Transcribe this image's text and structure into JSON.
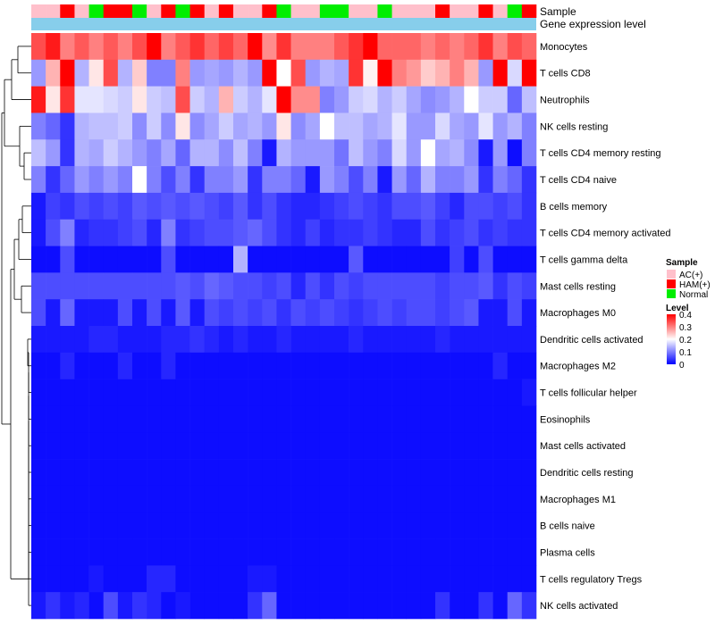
{
  "chart_data": {
    "type": "heatmap",
    "title": "",
    "annotation_tracks": [
      "Sample",
      "Gene expression level"
    ],
    "rows": [
      "Monocytes",
      "T cells CD8",
      "Neutrophils",
      "NK cells resting",
      "T cells CD4 memory resting",
      "T cells CD4 naive",
      "B cells memory",
      "T cells CD4 memory activated",
      "T cells gamma delta",
      "Mast cells resting",
      "Macrophages M0",
      "Dendritic cells activated",
      "Macrophages M2",
      "T cells follicular helper",
      "Eosinophils",
      "Mast cells activated",
      "Dendritic cells resting",
      "Macrophages M1",
      "B cells naive",
      "Plasma cells",
      "T cells regulatory  Tregs",
      "NK cells activated"
    ],
    "sample_groups": [
      "AC(+)",
      "AC(+)",
      "HAM(+)",
      "AC(+)",
      "Normal",
      "HAM(+)",
      "HAM(+)",
      "Normal",
      "AC(+)",
      "HAM(+)",
      "Normal",
      "HAM(+)",
      "AC(+)",
      "HAM(+)",
      "AC(+)",
      "AC(+)",
      "HAM(+)",
      "Normal",
      "AC(+)",
      "AC(+)",
      "Normal",
      "Normal",
      "AC(+)",
      "AC(+)",
      "Normal",
      "AC(+)",
      "AC(+)",
      "AC(+)",
      "HAM(+)",
      "AC(+)",
      "AC(+)",
      "HAM(+)",
      "AC(+)",
      "Normal",
      "HAM(+)"
    ],
    "values": [
      [
        0.34,
        0.38,
        0.3,
        0.33,
        0.3,
        0.33,
        0.3,
        0.34,
        0.4,
        0.3,
        0.33,
        0.36,
        0.32,
        0.35,
        0.32,
        0.4,
        0.29,
        0.36,
        0.3,
        0.3,
        0.3,
        0.33,
        0.36,
        0.4,
        0.32,
        0.32,
        0.32,
        0.3,
        0.32,
        0.3,
        0.32,
        0.36,
        0.3,
        0.34,
        0.32
      ],
      [
        0.12,
        0.26,
        0.4,
        0.14,
        0.22,
        0.34,
        0.14,
        0.24,
        0.1,
        0.1,
        0.3,
        0.12,
        0.13,
        0.12,
        0.14,
        0.12,
        0.4,
        0.2,
        0.34,
        0.12,
        0.14,
        0.13,
        0.36,
        0.21,
        0.4,
        0.3,
        0.28,
        0.24,
        0.26,
        0.3,
        0.26,
        0.12,
        0.4,
        0.17,
        0.4
      ],
      [
        0.38,
        0.22,
        0.36,
        0.18,
        0.18,
        0.17,
        0.16,
        0.22,
        0.16,
        0.15,
        0.34,
        0.16,
        0.14,
        0.26,
        0.16,
        0.14,
        0.18,
        0.4,
        0.29,
        0.29,
        0.1,
        0.12,
        0.16,
        0.17,
        0.14,
        0.16,
        0.13,
        0.11,
        0.12,
        0.14,
        0.2,
        0.16,
        0.16,
        0.08,
        0.15
      ],
      [
        0.1,
        0.08,
        0.04,
        0.14,
        0.15,
        0.15,
        0.16,
        0.11,
        0.16,
        0.11,
        0.22,
        0.11,
        0.13,
        0.16,
        0.13,
        0.14,
        0.12,
        0.22,
        0.11,
        0.13,
        0.2,
        0.15,
        0.15,
        0.13,
        0.14,
        0.18,
        0.12,
        0.12,
        0.17,
        0.13,
        0.12,
        0.18,
        0.12,
        0.14,
        0.1
      ],
      [
        0.15,
        0.12,
        0.04,
        0.14,
        0.13,
        0.16,
        0.14,
        0.12,
        0.1,
        0.13,
        0.08,
        0.14,
        0.14,
        0.11,
        0.15,
        0.1,
        0.02,
        0.14,
        0.12,
        0.12,
        0.12,
        0.09,
        0.15,
        0.12,
        0.1,
        0.17,
        0.12,
        0.2,
        0.13,
        0.14,
        0.11,
        0.02,
        0.12,
        0.01,
        0.1
      ],
      [
        0.1,
        0.04,
        0.08,
        0.12,
        0.1,
        0.12,
        0.1,
        0.2,
        0.1,
        0.06,
        0.1,
        0.04,
        0.1,
        0.1,
        0.12,
        0.04,
        0.1,
        0.1,
        0.08,
        0.02,
        0.12,
        0.1,
        0.06,
        0.1,
        0.02,
        0.12,
        0.08,
        0.14,
        0.1,
        0.1,
        0.12,
        0.04,
        0.1,
        0.08,
        0.04
      ],
      [
        0.02,
        0.05,
        0.04,
        0.06,
        0.05,
        0.06,
        0.05,
        0.07,
        0.06,
        0.07,
        0.06,
        0.07,
        0.06,
        0.05,
        0.07,
        0.04,
        0.06,
        0.04,
        0.03,
        0.03,
        0.04,
        0.05,
        0.06,
        0.05,
        0.04,
        0.06,
        0.06,
        0.07,
        0.05,
        0.03,
        0.06,
        0.06,
        0.05,
        0.06,
        0.04
      ],
      [
        0.02,
        0.06,
        0.1,
        0.03,
        0.04,
        0.04,
        0.05,
        0.06,
        0.03,
        0.1,
        0.04,
        0.05,
        0.06,
        0.06,
        0.07,
        0.08,
        0.06,
        0.04,
        0.03,
        0.05,
        0.03,
        0.04,
        0.04,
        0.05,
        0.04,
        0.03,
        0.03,
        0.06,
        0.04,
        0.05,
        0.06,
        0.04,
        0.05,
        0.04,
        0.04
      ],
      [
        0.01,
        0.01,
        0.06,
        0.01,
        0.01,
        0.01,
        0.01,
        0.01,
        0.01,
        0.06,
        0.01,
        0.01,
        0.01,
        0.01,
        0.14,
        0.01,
        0.01,
        0.01,
        0.01,
        0.01,
        0.01,
        0.01,
        0.07,
        0.01,
        0.01,
        0.01,
        0.01,
        0.01,
        0.01,
        0.05,
        0.01,
        0.06,
        0.01,
        0.01,
        0.01
      ],
      [
        0.06,
        0.06,
        0.06,
        0.06,
        0.06,
        0.06,
        0.06,
        0.06,
        0.06,
        0.06,
        0.07,
        0.06,
        0.08,
        0.07,
        0.06,
        0.06,
        0.05,
        0.06,
        0.03,
        0.06,
        0.04,
        0.06,
        0.05,
        0.06,
        0.06,
        0.06,
        0.06,
        0.06,
        0.05,
        0.06,
        0.06,
        0.07,
        0.04,
        0.06,
        0.05
      ],
      [
        0.06,
        0.02,
        0.08,
        0.02,
        0.02,
        0.02,
        0.06,
        0.02,
        0.06,
        0.02,
        0.07,
        0.02,
        0.06,
        0.05,
        0.06,
        0.05,
        0.06,
        0.04,
        0.06,
        0.05,
        0.06,
        0.05,
        0.04,
        0.05,
        0.06,
        0.05,
        0.06,
        0.06,
        0.05,
        0.06,
        0.07,
        0.02,
        0.02,
        0.06,
        0.02
      ],
      [
        0.02,
        0.02,
        0.02,
        0.02,
        0.03,
        0.03,
        0.02,
        0.02,
        0.02,
        0.03,
        0.03,
        0.04,
        0.03,
        0.02,
        0.03,
        0.02,
        0.02,
        0.03,
        0.02,
        0.02,
        0.02,
        0.02,
        0.03,
        0.02,
        0.02,
        0.02,
        0.02,
        0.02,
        0.03,
        0.02,
        0.02,
        0.02,
        0.02,
        0.02,
        0.02
      ],
      [
        0.01,
        0.01,
        0.03,
        0.01,
        0.01,
        0.01,
        0.03,
        0.01,
        0.01,
        0.03,
        0.01,
        0.01,
        0.01,
        0.01,
        0.01,
        0.01,
        0.01,
        0.01,
        0.01,
        0.01,
        0.01,
        0.01,
        0.01,
        0.01,
        0.01,
        0.01,
        0.01,
        0.01,
        0.01,
        0.01,
        0.01,
        0.01,
        0.03,
        0.01,
        0.01
      ],
      [
        0.01,
        0.01,
        0.01,
        0.01,
        0.01,
        0.01,
        0.01,
        0.01,
        0.01,
        0.01,
        0.01,
        0.01,
        0.01,
        0.01,
        0.01,
        0.01,
        0.01,
        0.01,
        0.01,
        0.01,
        0.01,
        0.01,
        0.01,
        0.01,
        0.01,
        0.01,
        0.01,
        0.01,
        0.01,
        0.01,
        0.01,
        0.01,
        0.01,
        0.01,
        0.02
      ],
      [
        0.01,
        0.01,
        0.01,
        0.01,
        0.01,
        0.01,
        0.01,
        0.01,
        0.01,
        0.01,
        0.01,
        0.01,
        0.01,
        0.01,
        0.01,
        0.01,
        0.01,
        0.01,
        0.01,
        0.01,
        0.01,
        0.01,
        0.01,
        0.01,
        0.01,
        0.01,
        0.01,
        0.01,
        0.01,
        0.01,
        0.01,
        0.01,
        0.01,
        0.01,
        0.01
      ],
      [
        0.01,
        0.01,
        0.01,
        0.01,
        0.01,
        0.01,
        0.01,
        0.01,
        0.01,
        0.01,
        0.01,
        0.01,
        0.01,
        0.01,
        0.01,
        0.01,
        0.01,
        0.01,
        0.01,
        0.01,
        0.01,
        0.01,
        0.01,
        0.01,
        0.01,
        0.01,
        0.01,
        0.01,
        0.01,
        0.01,
        0.01,
        0.01,
        0.01,
        0.01,
        0.01
      ],
      [
        0.01,
        0.01,
        0.01,
        0.01,
        0.01,
        0.01,
        0.01,
        0.01,
        0.01,
        0.01,
        0.01,
        0.01,
        0.01,
        0.01,
        0.01,
        0.01,
        0.01,
        0.01,
        0.01,
        0.01,
        0.01,
        0.01,
        0.01,
        0.01,
        0.01,
        0.01,
        0.01,
        0.01,
        0.01,
        0.01,
        0.01,
        0.01,
        0.01,
        0.01,
        0.01
      ],
      [
        0.01,
        0.01,
        0.01,
        0.01,
        0.01,
        0.01,
        0.01,
        0.01,
        0.01,
        0.01,
        0.01,
        0.01,
        0.01,
        0.01,
        0.01,
        0.01,
        0.01,
        0.01,
        0.01,
        0.01,
        0.01,
        0.01,
        0.01,
        0.01,
        0.01,
        0.01,
        0.01,
        0.01,
        0.01,
        0.01,
        0.01,
        0.01,
        0.01,
        0.01,
        0.01
      ],
      [
        0.01,
        0.01,
        0.01,
        0.01,
        0.01,
        0.01,
        0.01,
        0.01,
        0.01,
        0.01,
        0.01,
        0.01,
        0.01,
        0.01,
        0.01,
        0.01,
        0.01,
        0.01,
        0.01,
        0.01,
        0.01,
        0.01,
        0.01,
        0.01,
        0.01,
        0.01,
        0.01,
        0.01,
        0.01,
        0.01,
        0.01,
        0.01,
        0.01,
        0.01,
        0.01
      ],
      [
        0.01,
        0.01,
        0.01,
        0.01,
        0.01,
        0.01,
        0.01,
        0.01,
        0.01,
        0.01,
        0.01,
        0.01,
        0.01,
        0.01,
        0.01,
        0.01,
        0.01,
        0.01,
        0.01,
        0.01,
        0.01,
        0.01,
        0.01,
        0.01,
        0.01,
        0.01,
        0.01,
        0.01,
        0.01,
        0.01,
        0.01,
        0.01,
        0.01,
        0.01,
        0.01
      ],
      [
        0.01,
        0.01,
        0.01,
        0.01,
        0.02,
        0.01,
        0.01,
        0.01,
        0.03,
        0.03,
        0.01,
        0.01,
        0.01,
        0.01,
        0.01,
        0.02,
        0.02,
        0.01,
        0.01,
        0.01,
        0.01,
        0.01,
        0.01,
        0.01,
        0.01,
        0.01,
        0.01,
        0.01,
        0.01,
        0.01,
        0.01,
        0.01,
        0.01,
        0.01,
        0.01
      ],
      [
        0.02,
        0.04,
        0.02,
        0.03,
        0.01,
        0.06,
        0.02,
        0.04,
        0.03,
        0.01,
        0.02,
        0.01,
        0.01,
        0.01,
        0.01,
        0.04,
        0.08,
        0.01,
        0.01,
        0.01,
        0.01,
        0.01,
        0.01,
        0.01,
        0.01,
        0.01,
        0.01,
        0.01,
        0.04,
        0.01,
        0.01,
        0.04,
        0.01,
        0.08,
        0.04
      ]
    ],
    "color_scale": {
      "min": 0,
      "max": 0.4,
      "low": "#0000ff",
      "mid": "#ffffff",
      "high": "#ff0000"
    },
    "legend": {
      "sample_title": "Sample",
      "sample_items": [
        {
          "label": "AC(+)",
          "color": "#ffc0cb"
        },
        {
          "label": "HAM(+)",
          "color": "#ff0000"
        },
        {
          "label": "Normal",
          "color": "#00ee00"
        }
      ],
      "level_title": "Level",
      "level_ticks": [
        "0.4",
        "0.3",
        "0.2",
        "0.1",
        "0"
      ],
      "level_values": [
        0.4,
        0.3,
        0.2,
        0.1,
        0
      ]
    },
    "expression_track_color": "#87ceeb"
  }
}
